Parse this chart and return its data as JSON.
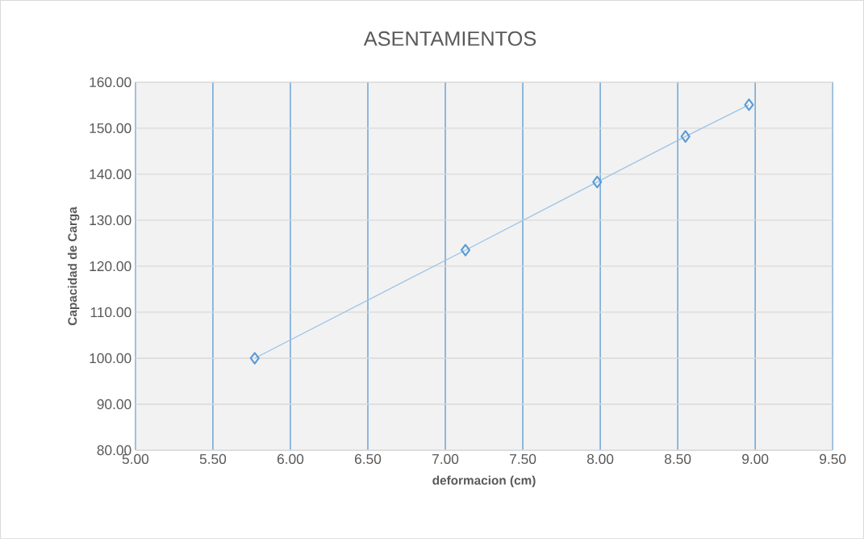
{
  "chart_data": {
    "type": "line",
    "title": "ASENTAMIENTOS",
    "xlabel": "deformacion (cm)",
    "ylabel": "Capacidad de Carga",
    "x": [
      5.77,
      7.13,
      7.98,
      8.55,
      8.96
    ],
    "series": [
      {
        "color": "#5b9bd5",
        "values": [
          100.0,
          123.5,
          138.3,
          148.2,
          155.1
        ]
      }
    ],
    "xlim": [
      5,
      9.5
    ],
    "ylim": [
      80,
      160
    ],
    "xticks": [
      {
        "value": 5,
        "label": "5.00"
      },
      {
        "value": 5.5,
        "label": "5.50"
      },
      {
        "value": 6,
        "label": "6.00"
      },
      {
        "value": 6.5,
        "label": "6.50"
      },
      {
        "value": 7,
        "label": "7.00"
      },
      {
        "value": 7.5,
        "label": "7.50"
      },
      {
        "value": 8,
        "label": "8.00"
      },
      {
        "value": 8.5,
        "label": "8.50"
      },
      {
        "value": 9,
        "label": "9.00"
      },
      {
        "value": 9.5,
        "label": "9.50"
      }
    ],
    "yticks": [
      {
        "value": 80,
        "label": "80.00"
      },
      {
        "value": 90,
        "label": "90.00"
      },
      {
        "value": 100,
        "label": "100.00"
      },
      {
        "value": 110,
        "label": "110.00"
      },
      {
        "value": 120,
        "label": "120.00"
      },
      {
        "value": 130,
        "label": "130.00"
      },
      {
        "value": 140,
        "label": "140.00"
      },
      {
        "value": 150,
        "label": "150.00"
      },
      {
        "value": 160,
        "label": "160.00"
      }
    ],
    "grid": true,
    "marker": "diamond",
    "line_style": "solid",
    "legend": false
  }
}
